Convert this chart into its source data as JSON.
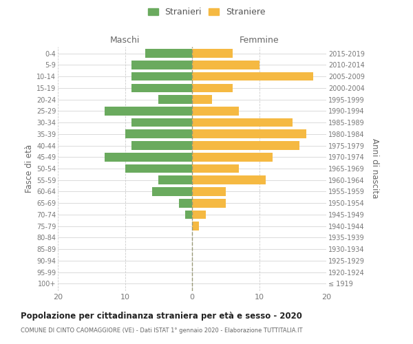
{
  "age_groups": [
    "100+",
    "95-99",
    "90-94",
    "85-89",
    "80-84",
    "75-79",
    "70-74",
    "65-69",
    "60-64",
    "55-59",
    "50-54",
    "45-49",
    "40-44",
    "35-39",
    "30-34",
    "25-29",
    "20-24",
    "15-19",
    "10-14",
    "5-9",
    "0-4"
  ],
  "birth_years": [
    "≤ 1919",
    "1920-1924",
    "1925-1929",
    "1930-1934",
    "1935-1939",
    "1940-1944",
    "1945-1949",
    "1950-1954",
    "1955-1959",
    "1960-1964",
    "1965-1969",
    "1970-1974",
    "1975-1979",
    "1980-1984",
    "1985-1989",
    "1990-1994",
    "1995-1999",
    "2000-2004",
    "2005-2009",
    "2010-2014",
    "2015-2019"
  ],
  "maschi": [
    0,
    0,
    0,
    0,
    0,
    0,
    1,
    2,
    6,
    5,
    10,
    13,
    9,
    10,
    9,
    13,
    5,
    9,
    9,
    9,
    7
  ],
  "femmine": [
    0,
    0,
    0,
    0,
    0,
    1,
    2,
    5,
    5,
    11,
    7,
    12,
    16,
    17,
    15,
    7,
    3,
    6,
    18,
    10,
    6
  ],
  "color_maschi": "#6aaa5e",
  "color_femmine": "#f5b942",
  "title_main": "Popolazione per cittadinanza straniera per età e sesso - 2020",
  "title_sub": "COMUNE DI CINTO CAOMAGGIORE (VE) - Dati ISTAT 1° gennaio 2020 - Elaborazione TUTTITALIA.IT",
  "label_maschi": "Maschi",
  "label_femmine": "Femmine",
  "legend_stranieri": "Stranieri",
  "legend_straniere": "Straniere",
  "ylabel_left": "Fasce di età",
  "ylabel_right": "Anni di nascita",
  "xlim": 20,
  "background_color": "#ffffff",
  "grid_color": "#cccccc"
}
